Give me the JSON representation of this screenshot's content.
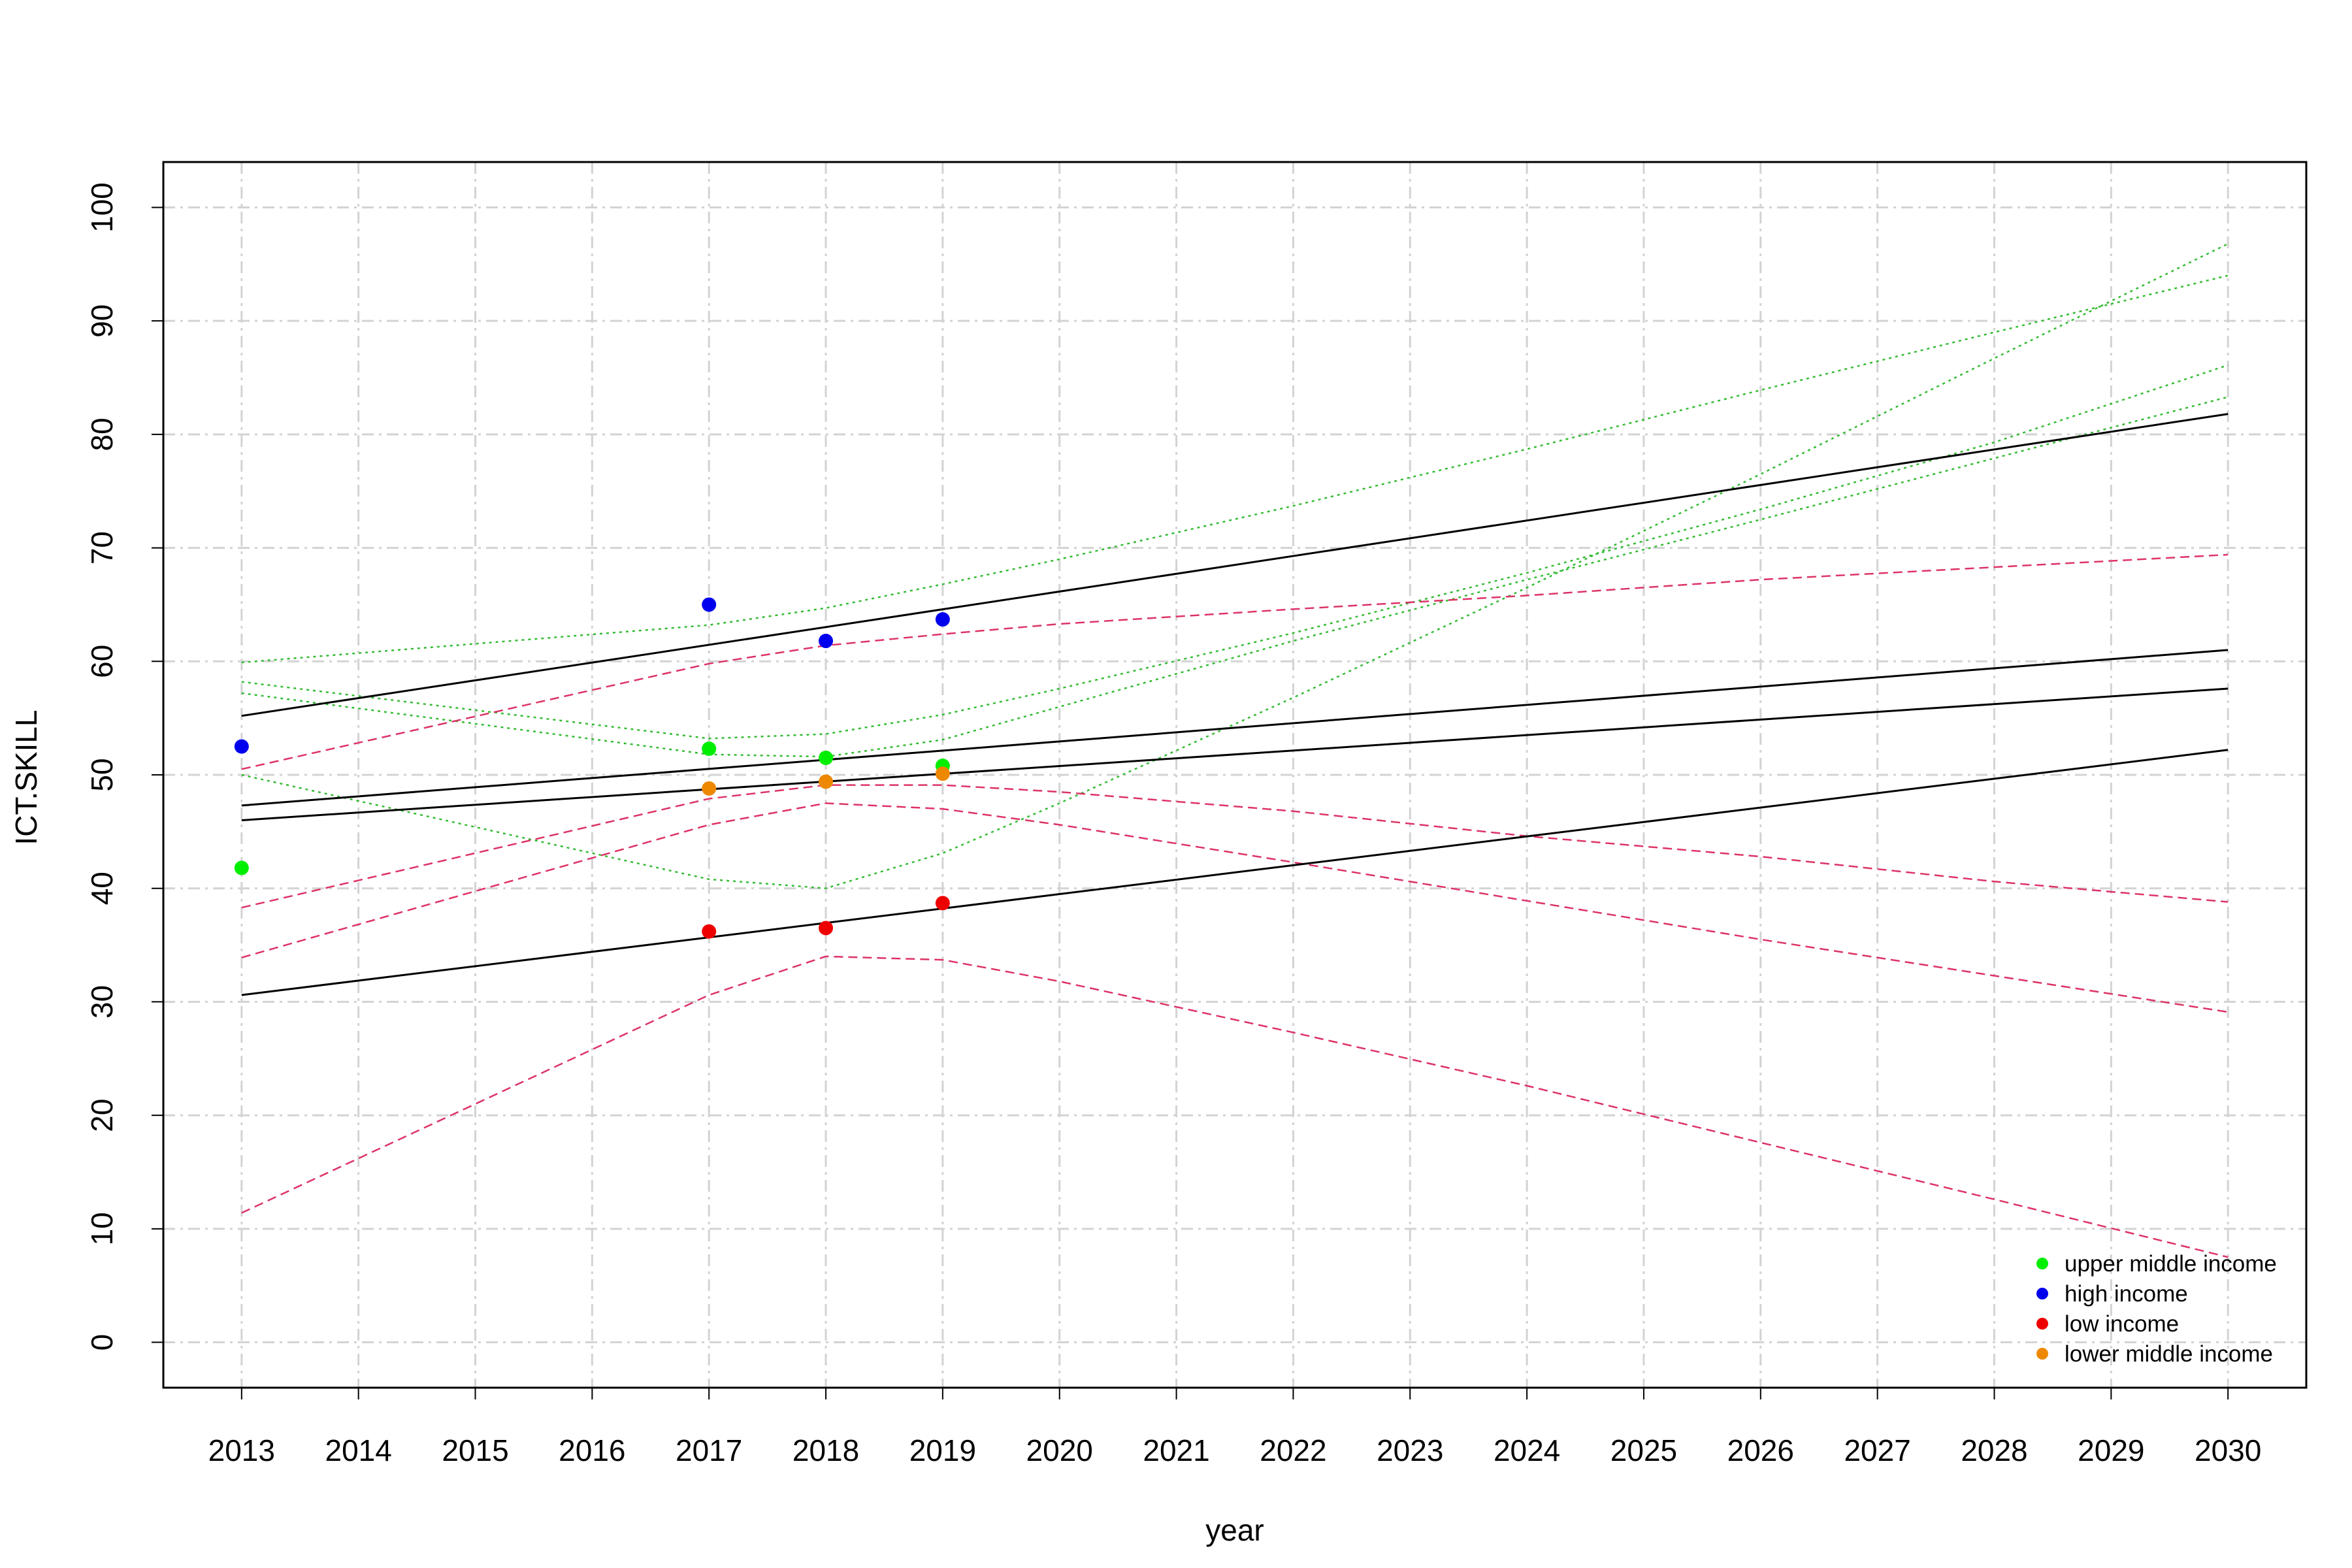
{
  "chart_data": {
    "type": "scatter",
    "title": "",
    "xlabel": "year",
    "ylabel": "ICT.SKILL",
    "xlim": [
      2012.33,
      2030.67
    ],
    "ylim": [
      -4,
      104
    ],
    "x_ticks": [
      2013,
      2014,
      2015,
      2016,
      2017,
      2018,
      2019,
      2020,
      2021,
      2022,
      2023,
      2024,
      2025,
      2026,
      2027,
      2028,
      2029,
      2030
    ],
    "y_ticks": [
      0,
      10,
      20,
      30,
      40,
      50,
      60,
      70,
      80,
      90,
      100
    ],
    "grid": true,
    "legend_position": "bottom-right",
    "series": [
      {
        "name": "upper middle income",
        "color": "#00ee00",
        "points": [
          [
            2013,
            41.8
          ],
          [
            2017,
            52.3
          ],
          [
            2018,
            51.5
          ],
          [
            2019,
            50.8
          ]
        ]
      },
      {
        "name": "high income",
        "color": "#0000ee",
        "points": [
          [
            2013,
            52.5
          ],
          [
            2017,
            65.0
          ],
          [
            2018,
            61.8
          ],
          [
            2019,
            63.7
          ]
        ]
      },
      {
        "name": "low income",
        "color": "#ee0000",
        "points": [
          [
            2017,
            36.2
          ],
          [
            2018,
            36.5
          ],
          [
            2019,
            38.7
          ]
        ]
      },
      {
        "name": "lower middle income",
        "color": "#ee8800",
        "points": [
          [
            2017,
            48.8
          ],
          [
            2018,
            49.4
          ],
          [
            2019,
            50.1
          ]
        ]
      }
    ],
    "fit_lines": [
      {
        "style": "solid",
        "color": "#000000",
        "points": [
          [
            2013,
            55.2
          ],
          [
            2030,
            81.8
          ]
        ]
      },
      {
        "style": "solid",
        "color": "#000000",
        "points": [
          [
            2013,
            47.3
          ],
          [
            2030,
            61.0
          ]
        ]
      },
      {
        "style": "solid",
        "color": "#000000",
        "points": [
          [
            2013,
            46.0
          ],
          [
            2030,
            57.6
          ]
        ]
      },
      {
        "style": "solid",
        "color": "#000000",
        "points": [
          [
            2013,
            30.6
          ],
          [
            2030,
            52.2
          ]
        ]
      }
    ],
    "interval_bands": [
      {
        "style": "dotted",
        "color": "#33bb33",
        "points": [
          [
            2013,
            59.9
          ],
          [
            2017,
            63.2
          ],
          [
            2018,
            64.7
          ],
          [
            2019,
            66.8
          ],
          [
            2020,
            69.0
          ],
          [
            2022,
            73.7
          ],
          [
            2024,
            78.7
          ],
          [
            2026,
            83.9
          ],
          [
            2028,
            89.0
          ],
          [
            2030,
            94.0
          ]
        ]
      },
      {
        "style": "dotted",
        "color": "#33bb33",
        "points": [
          [
            2013,
            58.2
          ],
          [
            2017,
            53.2
          ],
          [
            2018,
            53.6
          ],
          [
            2019,
            55.3
          ],
          [
            2020,
            57.6
          ],
          [
            2022,
            62.5
          ],
          [
            2024,
            67.8
          ],
          [
            2026,
            73.4
          ],
          [
            2028,
            79.3
          ],
          [
            2030,
            86.1
          ]
        ]
      },
      {
        "style": "dotted",
        "color": "#33bb33",
        "points": [
          [
            2013,
            57.2
          ],
          [
            2017,
            51.8
          ],
          [
            2018,
            51.6
          ],
          [
            2019,
            53.1
          ],
          [
            2020,
            56.0
          ],
          [
            2022,
            61.8
          ],
          [
            2024,
            67.2
          ],
          [
            2026,
            72.5
          ],
          [
            2028,
            77.9
          ],
          [
            2030,
            83.3
          ]
        ]
      },
      {
        "style": "dotted",
        "color": "#33bb33",
        "points": [
          [
            2013,
            50.0
          ],
          [
            2017,
            40.8
          ],
          [
            2018,
            40.0
          ],
          [
            2019,
            43.1
          ],
          [
            2020,
            47.5
          ],
          [
            2022,
            56.8
          ],
          [
            2024,
            66.5
          ],
          [
            2026,
            76.5
          ],
          [
            2028,
            86.7
          ],
          [
            2030,
            96.8
          ]
        ]
      },
      {
        "style": "dashed",
        "color": "#dd3366",
        "points": [
          [
            2013,
            50.5
          ],
          [
            2017,
            59.8
          ],
          [
            2018,
            61.4
          ],
          [
            2019,
            62.4
          ],
          [
            2020,
            63.3
          ],
          [
            2022,
            64.6
          ],
          [
            2024,
            65.8
          ],
          [
            2026,
            67.2
          ],
          [
            2028,
            68.3
          ],
          [
            2030,
            69.4
          ]
        ]
      },
      {
        "style": "dashed",
        "color": "#dd3366",
        "points": [
          [
            2013,
            38.3
          ],
          [
            2017,
            47.9
          ],
          [
            2018,
            49.1
          ],
          [
            2019,
            49.1
          ],
          [
            2020,
            48.5
          ],
          [
            2022,
            46.8
          ],
          [
            2024,
            44.6
          ],
          [
            2026,
            42.8
          ],
          [
            2028,
            40.6
          ],
          [
            2030,
            38.8
          ]
        ]
      },
      {
        "style": "dashed",
        "color": "#dd3366",
        "points": [
          [
            2013,
            33.9
          ],
          [
            2017,
            45.6
          ],
          [
            2018,
            47.5
          ],
          [
            2019,
            47.0
          ],
          [
            2020,
            45.6
          ],
          [
            2022,
            42.3
          ],
          [
            2024,
            38.9
          ],
          [
            2026,
            35.5
          ],
          [
            2028,
            32.3
          ],
          [
            2030,
            29.1
          ]
        ]
      },
      {
        "style": "dashed",
        "color": "#dd3366",
        "points": [
          [
            2013,
            11.4
          ],
          [
            2017,
            30.6
          ],
          [
            2018,
            34.0
          ],
          [
            2019,
            33.7
          ],
          [
            2020,
            31.8
          ],
          [
            2022,
            27.3
          ],
          [
            2024,
            22.6
          ],
          [
            2026,
            17.6
          ],
          [
            2028,
            12.6
          ],
          [
            2030,
            7.5
          ]
        ]
      }
    ]
  }
}
